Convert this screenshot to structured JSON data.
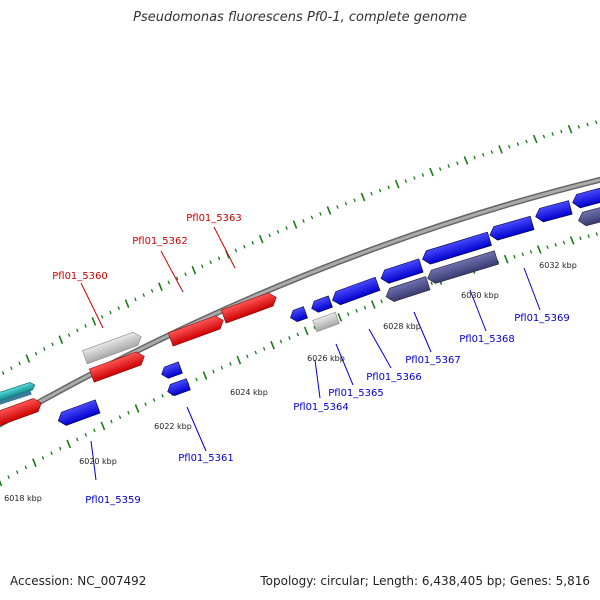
{
  "title": "Pseudomonas fluorescens Pf0-1, complete genome",
  "footer": {
    "accession": "Accession: NC_007492",
    "topology": "Topology: circular; Length: 6,438,405 bp; Genes: 5,816"
  },
  "colors": {
    "forward_gene": "#ee1111",
    "reverse_gene": "#1a1aee",
    "reverse_dark": "#4a4a8a",
    "unlabeled": "#bbbbbb",
    "teal": "#22bbbb",
    "tick": "#1a7a1a",
    "backbone": "#888888"
  },
  "scale_labels": [
    "6018 kbp",
    "6020 kbp",
    "6022 kbp",
    "6024 kbp",
    "6026 kbp",
    "6028 kbp",
    "6030 kbp",
    "6032 kbp"
  ],
  "genes": {
    "red": [
      "Pfl01_5360",
      "Pfl01_5362",
      "Pfl01_5363"
    ],
    "blue": [
      "Pfl01_5359",
      "Pfl01_5361",
      "Pfl01_5364",
      "Pfl01_5365",
      "Pfl01_5366",
      "Pfl01_5367",
      "Pfl01_5368",
      "Pfl01_5369"
    ]
  }
}
